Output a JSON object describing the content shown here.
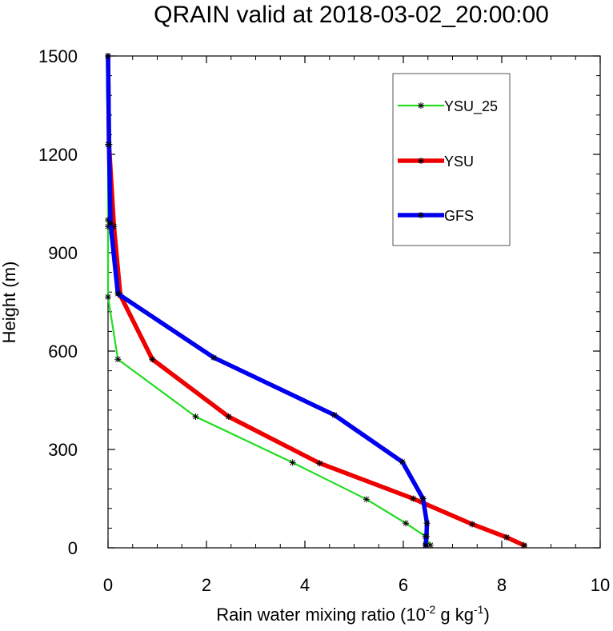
{
  "chart_data": {
    "type": "line",
    "title": "QRAIN valid at 2018-03-02_20:00:00",
    "xlabel": {
      "prefix": "Rain water mixing ratio (10",
      "exp1": "-2",
      "mid": " g kg",
      "exp2": "-1",
      "suffix": ")"
    },
    "ylabel": "Height (m)",
    "xlim": [
      0,
      10
    ],
    "ylim": [
      0,
      1500
    ],
    "xticks": [
      "0",
      "2",
      "4",
      "6",
      "8",
      "10"
    ],
    "xtick_values": [
      0,
      2,
      4,
      6,
      8,
      10
    ],
    "yticks": [
      "0",
      "300",
      "600",
      "900",
      "1200",
      "1500"
    ],
    "ytick_values": [
      0,
      300,
      600,
      900,
      1200,
      1500
    ],
    "grid": false,
    "legend_position": "top-right",
    "series": [
      {
        "name": "YSU_25",
        "color": "#22dd22",
        "width": "thin",
        "marker": "asterisk",
        "x": [
          6.55,
          6.45,
          6.05,
          5.25,
          3.75,
          1.78,
          0.2,
          0.0,
          0.0,
          0.0,
          0.0,
          0.0
        ],
        "y": [
          8,
          35,
          75,
          148,
          260,
          400,
          575,
          765,
          980,
          1000,
          1230,
          1500
        ]
      },
      {
        "name": "YSU",
        "color": "#ee0000",
        "width": "thick",
        "marker": "asterisk",
        "x": [
          8.45,
          8.1,
          7.4,
          6.2,
          4.3,
          2.45,
          0.9,
          0.25,
          0.12,
          0.02,
          0.0
        ],
        "y": [
          8,
          32,
          72,
          150,
          258,
          400,
          575,
          770,
          980,
          1230,
          1500
        ]
      },
      {
        "name": "GFS",
        "color": "#0000ee",
        "width": "thick",
        "marker": "asterisk",
        "x": [
          6.45,
          6.47,
          6.48,
          6.4,
          5.98,
          4.6,
          2.15,
          0.2,
          0.05,
          0.02,
          0.0
        ],
        "y": [
          8,
          35,
          75,
          150,
          262,
          405,
          580,
          775,
          990,
          1230,
          1500
        ]
      }
    ]
  }
}
